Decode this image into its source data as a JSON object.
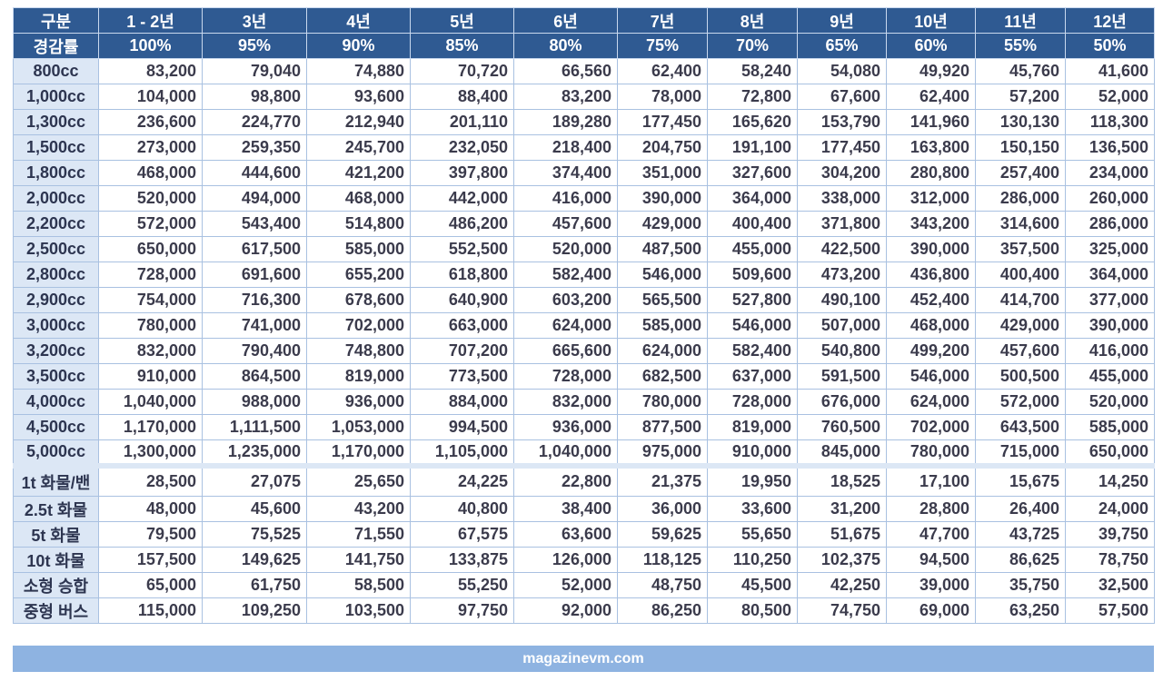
{
  "table": {
    "header": [
      [
        "구분",
        "1 - 2년",
        "3년",
        "4년",
        "5년",
        "6년",
        "7년",
        "8년",
        "9년",
        "10년",
        "11년",
        "12년"
      ],
      [
        "경감률",
        "100%",
        "95%",
        "90%",
        "85%",
        "80%",
        "75%",
        "70%",
        "65%",
        "60%",
        "55%",
        "50%"
      ]
    ],
    "rows": [
      [
        "800cc",
        "83,200",
        "79,040",
        "74,880",
        "70,720",
        "66,560",
        "62,400",
        "58,240",
        "54,080",
        "49,920",
        "45,760",
        "41,600"
      ],
      [
        "1,000cc",
        "104,000",
        "98,800",
        "93,600",
        "88,400",
        "83,200",
        "78,000",
        "72,800",
        "67,600",
        "62,400",
        "57,200",
        "52,000"
      ],
      [
        "1,300cc",
        "236,600",
        "224,770",
        "212,940",
        "201,110",
        "189,280",
        "177,450",
        "165,620",
        "153,790",
        "141,960",
        "130,130",
        "118,300"
      ],
      [
        "1,500cc",
        "273,000",
        "259,350",
        "245,700",
        "232,050",
        "218,400",
        "204,750",
        "191,100",
        "177,450",
        "163,800",
        "150,150",
        "136,500"
      ],
      [
        "1,800cc",
        "468,000",
        "444,600",
        "421,200",
        "397,800",
        "374,400",
        "351,000",
        "327,600",
        "304,200",
        "280,800",
        "257,400",
        "234,000"
      ],
      [
        "2,000cc",
        "520,000",
        "494,000",
        "468,000",
        "442,000",
        "416,000",
        "390,000",
        "364,000",
        "338,000",
        "312,000",
        "286,000",
        "260,000"
      ],
      [
        "2,200cc",
        "572,000",
        "543,400",
        "514,800",
        "486,200",
        "457,600",
        "429,000",
        "400,400",
        "371,800",
        "343,200",
        "314,600",
        "286,000"
      ],
      [
        "2,500cc",
        "650,000",
        "617,500",
        "585,000",
        "552,500",
        "520,000",
        "487,500",
        "455,000",
        "422,500",
        "390,000",
        "357,500",
        "325,000"
      ],
      [
        "2,800cc",
        "728,000",
        "691,600",
        "655,200",
        "618,800",
        "582,400",
        "546,000",
        "509,600",
        "473,200",
        "436,800",
        "400,400",
        "364,000"
      ],
      [
        "2,900cc",
        "754,000",
        "716,300",
        "678,600",
        "640,900",
        "603,200",
        "565,500",
        "527,800",
        "490,100",
        "452,400",
        "414,700",
        "377,000"
      ],
      [
        "3,000cc",
        "780,000",
        "741,000",
        "702,000",
        "663,000",
        "624,000",
        "585,000",
        "546,000",
        "507,000",
        "468,000",
        "429,000",
        "390,000"
      ],
      [
        "3,200cc",
        "832,000",
        "790,400",
        "748,800",
        "707,200",
        "665,600",
        "624,000",
        "582,400",
        "540,800",
        "499,200",
        "457,600",
        "416,000"
      ],
      [
        "3,500cc",
        "910,000",
        "864,500",
        "819,000",
        "773,500",
        "728,000",
        "682,500",
        "637,000",
        "591,500",
        "546,000",
        "500,500",
        "455,000"
      ],
      [
        "4,000cc",
        "1,040,000",
        "988,000",
        "936,000",
        "884,000",
        "832,000",
        "780,000",
        "728,000",
        "676,000",
        "624,000",
        "572,000",
        "520,000"
      ],
      [
        "4,500cc",
        "1,170,000",
        "1,111,500",
        "1,053,000",
        "994,500",
        "936,000",
        "877,500",
        "819,000",
        "760,500",
        "702,000",
        "643,500",
        "585,000"
      ],
      [
        "5,000cc",
        "1,300,000",
        "1,235,000",
        "1,170,000",
        "1,105,000",
        "1,040,000",
        "975,000",
        "910,000",
        "845,000",
        "780,000",
        "715,000",
        "650,000"
      ],
      [
        "1t 화물/밴",
        "28,500",
        "27,075",
        "25,650",
        "24,225",
        "22,800",
        "21,375",
        "19,950",
        "18,525",
        "17,100",
        "15,675",
        "14,250"
      ],
      [
        "2.5t 화물",
        "48,000",
        "45,600",
        "43,200",
        "40,800",
        "38,400",
        "36,000",
        "33,600",
        "31,200",
        "28,800",
        "26,400",
        "24,000"
      ],
      [
        "5t 화물",
        "79,500",
        "75,525",
        "71,550",
        "67,575",
        "63,600",
        "59,625",
        "55,650",
        "51,675",
        "47,700",
        "43,725",
        "39,750"
      ],
      [
        "10t 화물",
        "157,500",
        "149,625",
        "141,750",
        "133,875",
        "126,000",
        "118,125",
        "110,250",
        "102,375",
        "94,500",
        "86,625",
        "78,750"
      ],
      [
        "소형 승합",
        "65,000",
        "61,750",
        "58,500",
        "55,250",
        "52,000",
        "48,750",
        "45,500",
        "42,250",
        "39,000",
        "35,750",
        "32,500"
      ],
      [
        "중형 버스",
        "115,000",
        "109,250",
        "103,500",
        "97,750",
        "92,000",
        "86,250",
        "80,500",
        "74,750",
        "69,000",
        "63,250",
        "57,500"
      ]
    ]
  },
  "footer": "magazinevm.com"
}
